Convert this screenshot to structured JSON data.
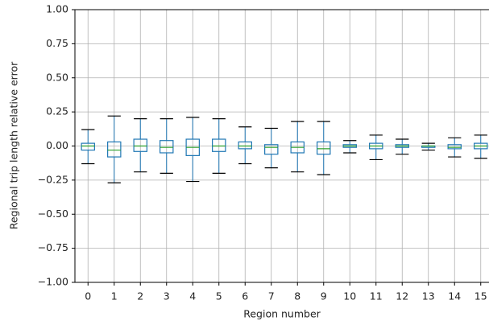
{
  "chart_data": {
    "type": "box",
    "xlabel": "Region number",
    "ylabel": "Regional trip length relative error",
    "categories": [
      "0",
      "1",
      "2",
      "3",
      "4",
      "5",
      "6",
      "7",
      "8",
      "9",
      "10",
      "11",
      "12",
      "13",
      "14",
      "15"
    ],
    "series": [
      {
        "color": "#1f77b4",
        "median_color": "#2ca02c",
        "whisker_color": "#000000",
        "whislo": [
          -0.13,
          -0.27,
          -0.19,
          -0.2,
          -0.26,
          -0.2,
          -0.13,
          -0.16,
          -0.19,
          -0.21,
          -0.05,
          -0.1,
          -0.06,
          -0.03,
          -0.08,
          -0.09
        ],
        "q1": [
          -0.03,
          -0.08,
          -0.04,
          -0.05,
          -0.07,
          -0.04,
          -0.02,
          -0.06,
          -0.05,
          -0.06,
          -0.01,
          -0.02,
          -0.01,
          -0.01,
          -0.02,
          -0.02
        ],
        "med": [
          0.0,
          -0.03,
          0.0,
          -0.01,
          -0.01,
          0.0,
          0.0,
          -0.01,
          -0.01,
          -0.02,
          0.0,
          0.0,
          0.0,
          0.0,
          -0.01,
          0.0
        ],
        "q3": [
          0.02,
          0.03,
          0.05,
          0.04,
          0.05,
          0.05,
          0.03,
          0.01,
          0.03,
          0.03,
          0.01,
          0.02,
          0.01,
          0.0,
          0.01,
          0.02
        ],
        "whishi": [
          0.12,
          0.22,
          0.2,
          0.2,
          0.21,
          0.2,
          0.14,
          0.13,
          0.18,
          0.18,
          0.04,
          0.08,
          0.05,
          0.02,
          0.06,
          0.08
        ]
      }
    ],
    "ylim": [
      -1,
      1
    ],
    "yticks": [
      {
        "value": -1,
        "label": "−1.00"
      },
      {
        "value": -0.75,
        "label": "−0.75"
      },
      {
        "value": -0.5,
        "label": "−0.50"
      },
      {
        "value": -0.25,
        "label": "−0.25"
      },
      {
        "value": 0,
        "label": "0.00"
      },
      {
        "value": 0.25,
        "label": "0.25"
      },
      {
        "value": 0.5,
        "label": "0.50"
      },
      {
        "value": 0.75,
        "label": "0.75"
      },
      {
        "value": 1,
        "label": "1.00"
      }
    ],
    "grid": true
  }
}
